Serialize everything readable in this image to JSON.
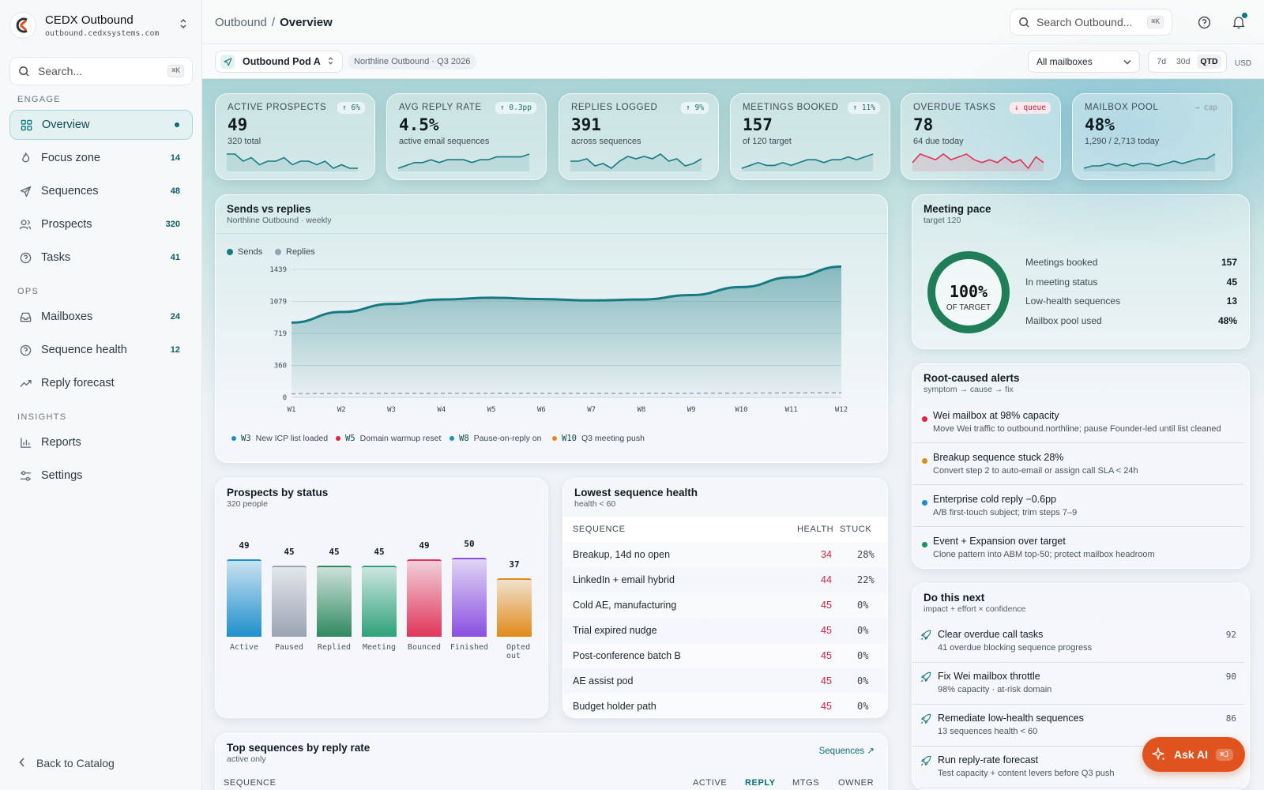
{
  "brand": {
    "title": "CEDX Outbound",
    "domain": "outbound.cedxsystems.com"
  },
  "sidebar": {
    "search_placeholder": "Search...",
    "search_kbd": "⌘K",
    "sections": {
      "engage": "ENGAGE",
      "ops": "OPS",
      "insights": "INSIGHTS"
    },
    "items": [
      {
        "label": "Overview",
        "icon": "grid-icon"
      },
      {
        "label": "Focus zone",
        "count": "14",
        "icon": "flame-icon"
      },
      {
        "label": "Sequences",
        "count": "48",
        "icon": "send-icon"
      },
      {
        "label": "Prospects",
        "count": "320",
        "icon": "users-icon"
      },
      {
        "label": "Tasks",
        "count": "41",
        "icon": "check-circle-icon"
      },
      {
        "label": "Mailboxes",
        "count": "24",
        "icon": "inbox-icon"
      },
      {
        "label": "Sequence health",
        "count": "12",
        "icon": "help-circle-icon"
      },
      {
        "label": "Reply forecast",
        "icon": "trend-icon"
      },
      {
        "label": "Reports",
        "icon": "bar-chart-icon"
      },
      {
        "label": "Settings",
        "icon": "sliders-icon"
      }
    ],
    "back": "Back to Catalog"
  },
  "header": {
    "crumb_root": "Outbound",
    "crumb_sep": "/",
    "crumb_current": "Overview",
    "search_placeholder": "Search Outbound...",
    "search_kbd": "⌘K"
  },
  "subbar": {
    "pod": "Outbound Pod A",
    "chip": "Northline Outbound · Q3 2026",
    "mailboxes": "All mailboxes",
    "ranges": [
      "7d",
      "30d",
      "QTD"
    ],
    "range_selected": "QTD",
    "currency": "USD"
  },
  "kpis": [
    {
      "label": "ACTIVE PROSPECTS",
      "value": "49",
      "sub": "320 total",
      "badge": "↑ 6%",
      "tone": "up",
      "color": "#177a83",
      "spark": [
        6,
        6,
        4,
        5,
        3,
        4,
        4,
        5,
        3,
        4,
        4,
        3,
        4,
        2,
        3,
        2,
        2
      ]
    },
    {
      "label": "AVG REPLY RATE",
      "value": "4.5%",
      "sub": "active email sequences",
      "badge": "↑ 0.3pp",
      "tone": "up",
      "color": "#177a83",
      "spark": [
        2,
        3,
        4,
        4,
        5,
        4,
        5,
        5,
        5,
        4,
        5,
        5,
        6,
        6,
        6,
        6,
        7
      ]
    },
    {
      "label": "REPLIES LOGGED",
      "value": "391",
      "sub": "across sequences",
      "badge": "↑ 9%",
      "tone": "up",
      "color": "#177a83",
      "spark": [
        5,
        5,
        6,
        3,
        4,
        2,
        5,
        7,
        6,
        7,
        6,
        8,
        5,
        6,
        3,
        4,
        6
      ]
    },
    {
      "label": "MEETINGS BOOKED",
      "value": "157",
      "sub": "of 120 target",
      "badge": "↑ 11%",
      "tone": "up",
      "color": "#177a83",
      "spark": [
        2,
        3,
        4,
        3,
        3,
        4,
        3,
        4,
        5,
        5,
        4,
        5,
        5,
        6,
        5,
        6,
        7
      ]
    },
    {
      "label": "OVERDUE TASKS",
      "value": "78",
      "sub": "64 due today",
      "badge": "↓ queue",
      "tone": "down",
      "color": "#e23155",
      "spark": [
        4,
        7,
        6,
        5,
        7,
        5,
        6,
        7,
        5,
        4,
        5,
        4,
        6,
        4,
        5,
        2,
        6,
        4
      ]
    },
    {
      "label": "MAILBOX POOL",
      "value": "48%",
      "sub": "1,290 / 2,713 today",
      "badge": "→ cap",
      "tone": "flat",
      "color": "#177a83",
      "spark": [
        2,
        3,
        3,
        4,
        3,
        4,
        3,
        4,
        4,
        3,
        4,
        5,
        4,
        5,
        6,
        6,
        8
      ]
    }
  ],
  "sends": {
    "title": "Sends vs replies",
    "subtitle": "Northline Outbound · weekly",
    "legend": [
      "Sends",
      "Replies"
    ],
    "annotations": [
      {
        "week": "W3",
        "text": "New ICP list loaded",
        "color": "#1a8fcf"
      },
      {
        "week": "W5",
        "text": "Domain warmup reset",
        "color": "#e0233f"
      },
      {
        "week": "W8",
        "text": "Pause-on-reply on",
        "color": "#1a8fcf"
      },
      {
        "week": "W10",
        "text": "Q3 meeting push",
        "color": "#e08a1a"
      }
    ]
  },
  "chart_data": {
    "type": "area",
    "title": "Sends vs replies",
    "x": [
      "W1",
      "W2",
      "W3",
      "W4",
      "W5",
      "W6",
      "W7",
      "W8",
      "W9",
      "W10",
      "W11",
      "W12"
    ],
    "yticks": [
      0,
      360,
      719,
      1079,
      1439
    ],
    "ylim": [
      0,
      1439
    ],
    "series": [
      {
        "name": "Sends",
        "color": "#177a83",
        "values": [
          840,
          960,
          1050,
          1100,
          1120,
          1105,
          1090,
          1100,
          1150,
          1240,
          1350,
          1470
        ]
      },
      {
        "name": "Replies",
        "color": "#94a3b8",
        "values": [
          40,
          44,
          46,
          46,
          47,
          46,
          46,
          46,
          47,
          48,
          50,
          52
        ]
      }
    ],
    "grid": true,
    "legend": "top-left"
  },
  "pace": {
    "title": "Meeting pace",
    "subtitle": "target 120",
    "percent": "100%",
    "ring_label": "OF TARGET",
    "fill": 1.0,
    "rows": [
      {
        "label": "Meetings booked",
        "value": "157"
      },
      {
        "label": "In meeting status",
        "value": "45"
      },
      {
        "label": "Low-health sequences",
        "value": "13"
      },
      {
        "label": "Mailbox pool used",
        "value": "48%"
      }
    ]
  },
  "alerts": {
    "title": "Root-caused alerts",
    "subtitle": "symptom → cause → fix",
    "items": [
      {
        "title": "Wei mailbox at 98% capacity",
        "sub": "Move Wei traffic to outbound.northline; pause Founder-led until list cleaned",
        "color": "#e0233f"
      },
      {
        "title": "Breakup sequence stuck 28%",
        "sub": "Convert step 2 to auto-email or assign call SLA < 24h",
        "color": "#e08a1a"
      },
      {
        "title": "Enterprise cold reply −0.6pp",
        "sub": "A/B first-touch subject; trim steps 7–9",
        "color": "#1a8fcf"
      },
      {
        "title": "Event + Expansion over target",
        "sub": "Clone pattern into ABM top-50; protect mailbox headroom",
        "color": "#17915c"
      }
    ]
  },
  "next": {
    "title": "Do this next",
    "subtitle": "impact + effort × confidence",
    "items": [
      {
        "title": "Clear overdue call tasks",
        "sub": "41 overdue blocking sequence progress",
        "score": "92"
      },
      {
        "title": "Fix Wei mailbox throttle",
        "sub": "98% capacity · at-risk domain",
        "score": "90"
      },
      {
        "title": "Remediate low-health sequences",
        "sub": "13 sequences health < 60",
        "score": "86"
      },
      {
        "title": "Run reply-rate forecast",
        "sub": "Test capacity + content levers before Q3 push",
        "score": ""
      }
    ]
  },
  "prospects": {
    "title": "Prospects by status",
    "subtitle": "320 people",
    "bars": [
      {
        "label": "Active",
        "value": 49,
        "color": "#1e8fcc"
      },
      {
        "label": "Paused",
        "value": 45,
        "color": "#9aa4b2"
      },
      {
        "label": "Replied",
        "value": 45,
        "color": "#2f8a5f"
      },
      {
        "label": "Meeting",
        "value": 45,
        "color": "#2fa27a"
      },
      {
        "label": "Bounced",
        "value": 49,
        "color": "#e0355a"
      },
      {
        "label": "Finished",
        "value": 50,
        "color": "#8a4fe0"
      },
      {
        "label": "Opted out",
        "value": 37,
        "color": "#e08a1a"
      }
    ]
  },
  "health": {
    "title": "Lowest sequence health",
    "subtitle": "health < 60",
    "headers": [
      "SEQUENCE",
      "HEALTH",
      "STUCK"
    ],
    "rows": [
      {
        "name": "Breakup, 14d no open",
        "health": "34",
        "stuck": "28%"
      },
      {
        "name": "LinkedIn + email hybrid",
        "health": "44",
        "stuck": "22%"
      },
      {
        "name": "Cold AE, manufacturing",
        "health": "45",
        "stuck": "0%"
      },
      {
        "name": "Trial expired nudge",
        "health": "45",
        "stuck": "0%"
      },
      {
        "name": "Post-conference batch B",
        "health": "45",
        "stuck": "0%"
      },
      {
        "name": "AE assist pod",
        "health": "45",
        "stuck": "0%"
      },
      {
        "name": "Budget holder path",
        "health": "45",
        "stuck": "0%"
      }
    ]
  },
  "top_sequences": {
    "title": "Top sequences by reply rate",
    "subtitle": "active only",
    "link": "Sequences ↗",
    "headers": [
      "SEQUENCE",
      "ACTIVE",
      "REPLY",
      "MTGS",
      "OWNER"
    ]
  },
  "ask_ai": {
    "label": "Ask AI",
    "kbd": "⌘J"
  },
  "colors": {
    "accent": "#177a83",
    "danger": "#e0233f",
    "cta": "#e0531f"
  }
}
